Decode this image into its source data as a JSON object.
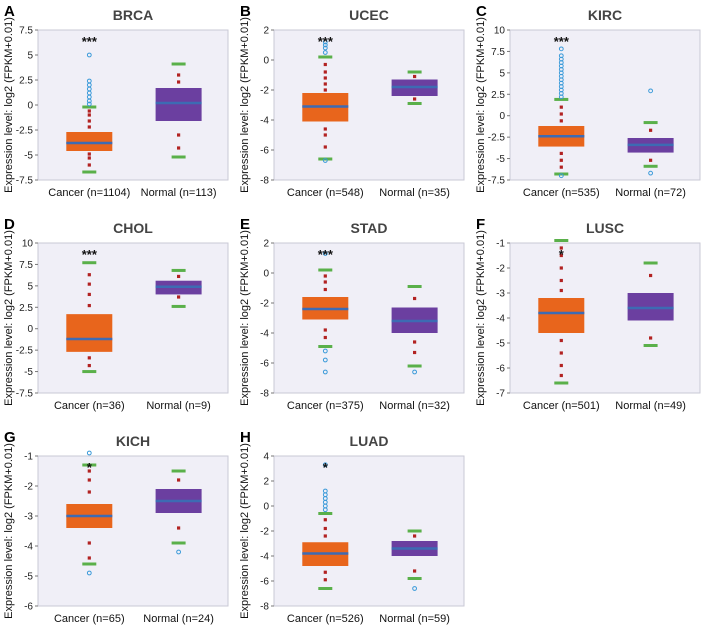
{
  "colors": {
    "background": "#f0eff7",
    "cancer_box": "#e8651c",
    "normal_box": "#6b3fa0",
    "median_line": "#3d6bb3",
    "whisker_cap": "#5ab04a",
    "point_red": "#b22222",
    "outlier": "#3a9ad9"
  },
  "chart_data": [
    {
      "type": "box",
      "letter": "A",
      "title": "BRCA",
      "ylabel": "Expression level: log2 (FPKM+0.01)",
      "ylim": [
        -7.5,
        7.5
      ],
      "ticks": [
        -7.5,
        -5,
        -2.5,
        0,
        2.5,
        5,
        7.5
      ],
      "tick_labels": [
        "-7.5",
        "-5",
        "-2.5",
        "0",
        "2.5",
        "5",
        "7.5"
      ],
      "significance": "***",
      "groups": [
        {
          "name": "Cancer (n=1104)",
          "kind": "cancer",
          "whisker_low": -6.7,
          "q1": -4.6,
          "median": -3.8,
          "q3": -2.7,
          "whisker_high": -0.2,
          "points": [
            -6,
            -5.3,
            -4.9,
            -4.2,
            -3.3,
            -2.2,
            -1.6,
            -1.0,
            -0.6
          ],
          "outliers": [
            0.1,
            0.4,
            0.8,
            1.2,
            1.6,
            2.0,
            2.4,
            5.0
          ]
        },
        {
          "name": "Normal (n=113)",
          "kind": "normal",
          "whisker_low": -5.2,
          "q1": -1.6,
          "median": 0.2,
          "q3": 1.7,
          "whisker_high": 4.1,
          "points": [
            -4.3,
            -3.0,
            -1.0,
            0.6,
            1.3,
            2.3,
            3.0
          ],
          "outliers": []
        }
      ]
    },
    {
      "type": "box",
      "letter": "B",
      "title": "UCEC",
      "ylabel": "Expression level: log2 (FPKM+0.01)",
      "ylim": [
        -8,
        2
      ],
      "ticks": [
        -8,
        -6,
        -4,
        -2,
        0,
        2
      ],
      "tick_labels": [
        "-8",
        "-6",
        "-4",
        "-2",
        "0",
        "2"
      ],
      "significance": "***",
      "groups": [
        {
          "name": "Cancer (n=548)",
          "kind": "cancer",
          "whisker_low": -6.6,
          "q1": -4.1,
          "median": -3.1,
          "q3": -2.2,
          "whisker_high": 0.2,
          "points": [
            -5.8,
            -5.0,
            -4.6,
            -2.0,
            -1.6,
            -1.2,
            -0.8,
            -0.3
          ],
          "outliers": [
            0.5,
            0.8,
            1.0,
            1.2,
            -6.7
          ]
        },
        {
          "name": "Normal (n=35)",
          "kind": "normal",
          "whisker_low": -2.9,
          "q1": -2.4,
          "median": -1.8,
          "q3": -1.3,
          "whisker_high": -0.8,
          "points": [
            -2.6,
            -1.1
          ],
          "outliers": []
        }
      ]
    },
    {
      "type": "box",
      "letter": "C",
      "title": "KIRC",
      "ylabel": "Expression level: log2 (FPKM+0.01)",
      "ylim": [
        -7.5,
        10
      ],
      "ticks": [
        -7.5,
        -5,
        -2.5,
        0,
        2.5,
        5,
        7.5,
        10
      ],
      "tick_labels": [
        "-7.5",
        "-5",
        "-2.5",
        "0",
        "2.5",
        "5",
        "7.5",
        "10"
      ],
      "significance": "***",
      "groups": [
        {
          "name": "Cancer (n=535)",
          "kind": "cancer",
          "whisker_low": -6.8,
          "q1": -3.6,
          "median": -2.4,
          "q3": -1.2,
          "whisker_high": 1.9,
          "points": [
            -6.0,
            -5.2,
            -4.4,
            -0.6,
            0.2,
            1.0
          ],
          "outliers": [
            2.2,
            2.6,
            3.0,
            3.4,
            3.8,
            4.2,
            4.6,
            5.0,
            5.4,
            5.8,
            6.2,
            6.6,
            7.0,
            7.8,
            -7.0
          ]
        },
        {
          "name": "Normal (n=72)",
          "kind": "normal",
          "whisker_low": -5.9,
          "q1": -4.3,
          "median": -3.4,
          "q3": -2.6,
          "whisker_high": -0.8,
          "points": [
            -5.2,
            -1.7
          ],
          "outliers": [
            2.9,
            -6.7
          ]
        }
      ]
    },
    {
      "type": "box",
      "letter": "D",
      "title": "CHOL",
      "ylabel": "Expression level: log2 (FPKM+0.01)",
      "ylim": [
        -7.5,
        10
      ],
      "ticks": [
        -7.5,
        -5,
        -2.5,
        0,
        2.5,
        5,
        7.5,
        10
      ],
      "tick_labels": [
        "-7.5",
        "-5",
        "-2.5",
        "0",
        "2.5",
        "5",
        "7.5",
        "10"
      ],
      "significance": "***",
      "groups": [
        {
          "name": "Cancer (n=36)",
          "kind": "cancer",
          "whisker_low": -5.0,
          "q1": -2.7,
          "median": -1.2,
          "q3": 1.7,
          "whisker_high": 7.7,
          "points": [
            -4.3,
            -3.4,
            2.7,
            4.0,
            5.2,
            6.3
          ],
          "outliers": []
        },
        {
          "name": "Normal (n=9)",
          "kind": "normal",
          "whisker_low": 2.6,
          "q1": 4.0,
          "median": 4.9,
          "q3": 5.6,
          "whisker_high": 6.8,
          "points": [
            3.7,
            6.1
          ],
          "outliers": []
        }
      ]
    },
    {
      "type": "box",
      "letter": "E",
      "title": "STAD",
      "ylabel": "Expression level: log2 (FPKM+0.01)",
      "ylim": [
        -8,
        2
      ],
      "ticks": [
        -8,
        -6,
        -4,
        -2,
        0,
        2
      ],
      "tick_labels": [
        "-8",
        "-6",
        "-4",
        "-2",
        "0",
        "2"
      ],
      "significance": "***",
      "groups": [
        {
          "name": "Cancer (n=375)",
          "kind": "cancer",
          "whisker_low": -4.9,
          "q1": -3.1,
          "median": -2.4,
          "q3": -1.6,
          "whisker_high": 0.2,
          "points": [
            -4.3,
            -3.8,
            -1.1,
            -0.6,
            -0.2
          ],
          "outliers": [
            -5.2,
            -5.8,
            -6.6,
            1.3
          ]
        },
        {
          "name": "Normal (n=32)",
          "kind": "normal",
          "whisker_low": -6.2,
          "q1": -4.0,
          "median": -3.2,
          "q3": -2.3,
          "whisker_high": -0.9,
          "points": [
            -5.3,
            -4.6,
            -1.7
          ],
          "outliers": [
            -6.6
          ]
        }
      ]
    },
    {
      "type": "box",
      "letter": "F",
      "title": "LUSC",
      "ylabel": "Expression level: log2 (FPKM+0.01)",
      "ylim": [
        -7,
        -1
      ],
      "ticks": [
        -7,
        -6,
        -5,
        -4,
        -3,
        -2,
        -1
      ],
      "tick_labels": [
        "-7",
        "-6",
        "-5",
        "-4",
        "-3",
        "-2",
        "-1"
      ],
      "significance": "*",
      "groups": [
        {
          "name": "Cancer (n=501)",
          "kind": "cancer",
          "whisker_low": -6.6,
          "q1": -4.6,
          "median": -3.8,
          "q3": -3.2,
          "whisker_high": -0.9,
          "points": [
            -6.3,
            -5.9,
            -5.4,
            -4.9,
            -2.9,
            -2.5,
            -2.0,
            -1.5,
            -1.2
          ],
          "outliers": []
        },
        {
          "name": "Normal (n=49)",
          "kind": "normal",
          "whisker_low": -5.1,
          "q1": -4.1,
          "median": -3.6,
          "q3": -3.0,
          "whisker_high": -1.8,
          "points": [
            -4.8,
            -2.3
          ],
          "outliers": []
        }
      ]
    },
    {
      "type": "box",
      "letter": "G",
      "title": "KICH",
      "ylabel": "Expression level: log2 (FPKM+0.01)",
      "ylim": [
        -6,
        -1
      ],
      "ticks": [
        -6,
        -5,
        -4,
        -3,
        -2,
        -1
      ],
      "tick_labels": [
        "-6",
        "-5",
        "-4",
        "-3",
        "-2",
        "-1"
      ],
      "significance": "*",
      "groups": [
        {
          "name": "Cancer (n=65)",
          "kind": "cancer",
          "whisker_low": -4.6,
          "q1": -3.4,
          "median": -3.0,
          "q3": -2.6,
          "whisker_high": -1.3,
          "points": [
            -4.4,
            -3.9,
            -2.2,
            -1.8,
            -1.5
          ],
          "outliers": [
            -4.9,
            -0.9
          ]
        },
        {
          "name": "Normal (n=24)",
          "kind": "normal",
          "whisker_low": -3.9,
          "q1": -2.9,
          "median": -2.5,
          "q3": -2.1,
          "whisker_high": -1.5,
          "points": [
            -3.4,
            -1.8
          ],
          "outliers": [
            -4.2
          ]
        }
      ]
    },
    {
      "type": "box",
      "letter": "H",
      "title": "LUAD",
      "ylabel": "Expression level: log2 (FPKM+0.01)",
      "ylim": [
        -8,
        4
      ],
      "ticks": [
        -8,
        -6,
        -4,
        -2,
        0,
        2,
        4
      ],
      "tick_labels": [
        "-8",
        "-6",
        "-4",
        "-2",
        "0",
        "2",
        "4"
      ],
      "significance": "*",
      "groups": [
        {
          "name": "Cancer (n=526)",
          "kind": "cancer",
          "whisker_low": -6.6,
          "q1": -4.8,
          "median": -3.8,
          "q3": -2.9,
          "whisker_high": -0.6,
          "points": [
            -5.9,
            -5.3,
            -2.4,
            -1.8,
            -1.1
          ],
          "outliers": [
            -0.3,
            0.0,
            0.3,
            0.6,
            0.9,
            1.2,
            3.3
          ]
        },
        {
          "name": "Normal (n=59)",
          "kind": "normal",
          "whisker_low": -5.8,
          "q1": -4.0,
          "median": -3.4,
          "q3": -2.8,
          "whisker_high": -2.0,
          "points": [
            -5.2,
            -2.4
          ],
          "outliers": [
            -6.6
          ]
        }
      ]
    }
  ]
}
